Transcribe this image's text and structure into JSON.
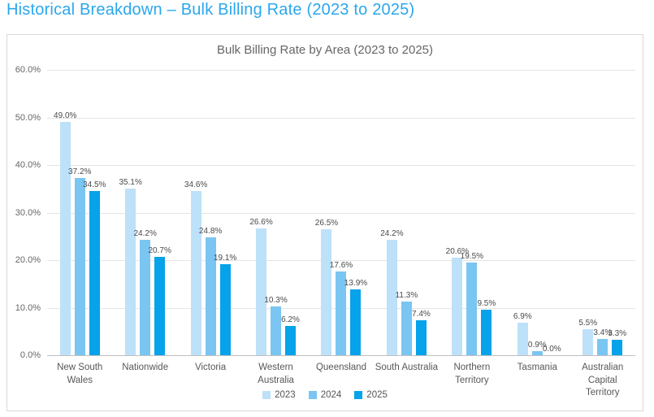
{
  "page": {
    "title": "Historical Breakdown – Bulk Billing Rate (2023 to 2025)",
    "title_color": "#2BA7EC"
  },
  "chart_data": {
    "type": "bar",
    "title": "Bulk Billing Rate by Area (2023 to 2025)",
    "categories": [
      "New South Wales",
      "Nationwide",
      "Victoria",
      "Western Australia",
      "Queensland",
      "South Australia",
      "Northern Territory",
      "Tasmania",
      "Australian Capital Territory"
    ],
    "category_tick_lines": [
      [
        "New South Wales"
      ],
      [
        "Nationwide"
      ],
      [
        "Victoria"
      ],
      [
        "Western Australia"
      ],
      [
        "Queensland"
      ],
      [
        "South Australia"
      ],
      [
        "Northern",
        "Territory"
      ],
      [
        "Tasmania"
      ],
      [
        "Australian Capital",
        "Territory"
      ]
    ],
    "series": [
      {
        "name": "2023",
        "color": "#BDE1F8",
        "values": [
          49.0,
          35.1,
          34.6,
          26.6,
          26.5,
          24.2,
          20.6,
          6.9,
          5.5
        ]
      },
      {
        "name": "2024",
        "color": "#7AC5F1",
        "values": [
          37.2,
          24.2,
          24.8,
          10.3,
          17.6,
          11.3,
          19.5,
          0.9,
          3.4
        ]
      },
      {
        "name": "2025",
        "color": "#06A2EA",
        "values": [
          34.5,
          20.7,
          19.1,
          6.2,
          13.9,
          7.4,
          9.5,
          0.0,
          3.3
        ]
      }
    ],
    "ylim": [
      0,
      60
    ],
    "ytick_step": 10,
    "ytick_labels": [
      "0.0%",
      "10.0%",
      "20.0%",
      "30.0%",
      "40.0%",
      "50.0%",
      "60.0%"
    ],
    "grid": true,
    "legend_position": "bottom",
    "value_labels": "shown above each bar, one decimal place with % suffix"
  }
}
